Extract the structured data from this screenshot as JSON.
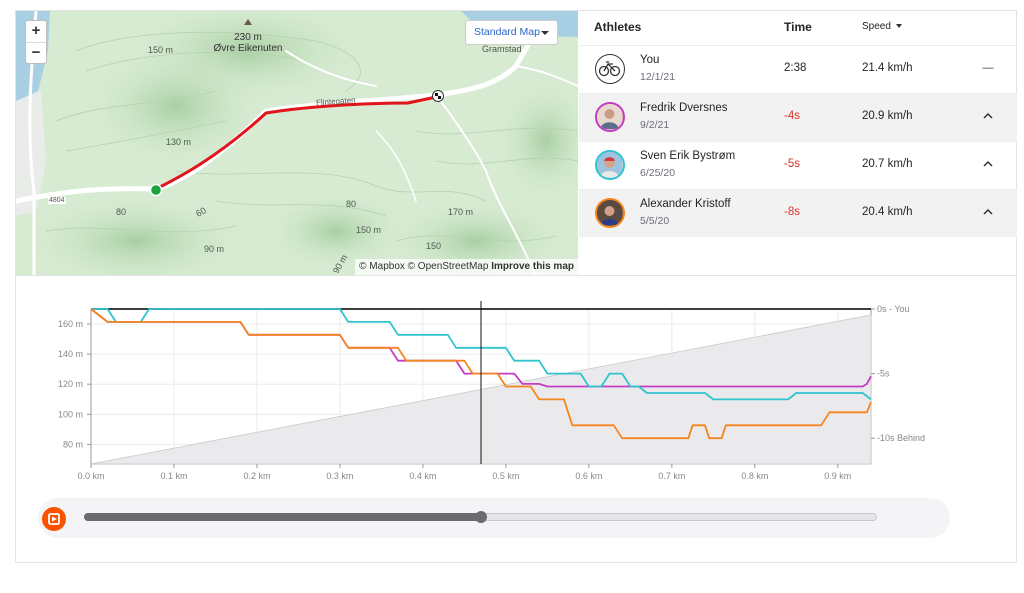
{
  "map": {
    "zoom_in": "+",
    "zoom_out": "−",
    "style_label": "Standard Map",
    "attribution_left": "© Mapbox © OpenStreetMap",
    "attribution_link": "Improve this map",
    "labels": {
      "peak_height": "230 m",
      "peak_name": "Øvre Eikenuten",
      "place": "Gramstad",
      "road": "Flintegaten",
      "road_number": "4804",
      "contours": [
        "150 m",
        "130 m",
        "60",
        "80",
        "90 m",
        "80",
        "150 m",
        "150",
        "170 m",
        "90 m"
      ]
    }
  },
  "leaderboard": {
    "headers": {
      "athletes": "Athletes",
      "time": "Time",
      "speed": "Speed"
    },
    "rows": [
      {
        "name": "You",
        "date": "12/1/21",
        "time": "2:38",
        "speed": "21.4 km/h",
        "toggle": "—",
        "avatar": "bike-icon",
        "ring": "#333333"
      },
      {
        "name": "Fredrik Dversnes",
        "date": "9/2/21",
        "time": "-4s",
        "speed": "20.9 km/h",
        "toggle": "⌃",
        "avatar": "athlete-photo",
        "ring": "#c43bc4"
      },
      {
        "name": "Sven Erik Bystrøm",
        "date": "6/25/20",
        "time": "-5s",
        "speed": "20.7 km/h",
        "toggle": "⌃",
        "avatar": "athlete-photo",
        "ring": "#2ec4d0"
      },
      {
        "name": "Alexander Kristoff",
        "date": "5/5/20",
        "time": "-8s",
        "speed": "20.4 km/h",
        "toggle": "⌃",
        "avatar": "athlete-photo",
        "ring": "#f5851f"
      }
    ]
  },
  "chart_data": {
    "type": "line",
    "x_ticks": [
      "0.0 km",
      "0.1 km",
      "0.2 km",
      "0.3 km",
      "0.4 km",
      "0.5 km",
      "0.6 km",
      "0.7 km",
      "0.8 km",
      "0.9 km"
    ],
    "y_ticks": [
      "160 m",
      "140 m",
      "120 m",
      "100 m",
      "80 m"
    ],
    "y2_ticks": [
      "0s - You",
      "-5s",
      "-10s Behind"
    ],
    "xlim": [
      0,
      0.94
    ],
    "ylim": [
      67,
      170
    ],
    "y2lim": [
      0,
      12
    ],
    "cursor_x": 0.47,
    "elevation": {
      "x": [
        0,
        0.94
      ],
      "y": [
        67,
        166
      ]
    },
    "series": [
      {
        "color": "#222222",
        "x": [
          0,
          0.94
        ],
        "y": [
          0,
          0
        ]
      },
      {
        "color": "#c43bc4",
        "x": [
          0,
          0.01,
          0.02,
          0.06,
          0.18,
          0.19,
          0.3,
          0.31,
          0.36,
          0.37,
          0.44,
          0.45,
          0.51,
          0.52,
          0.54,
          0.55,
          0.93,
          0.935,
          0.94
        ],
        "y": [
          0,
          0.5,
          1,
          1,
          1,
          2,
          2,
          3,
          3,
          4,
          4,
          5,
          5,
          5.8,
          5.8,
          6,
          6,
          5.8,
          5.2
        ]
      },
      {
        "color": "#2ec4d0",
        "x": [
          0,
          0.02,
          0.03,
          0.06,
          0.07,
          0.3,
          0.31,
          0.36,
          0.37,
          0.43,
          0.44,
          0.5,
          0.51,
          0.54,
          0.55,
          0.59,
          0.6,
          0.615,
          0.625,
          0.64,
          0.65,
          0.66,
          0.67,
          0.74,
          0.75,
          0.84,
          0.85,
          0.93,
          0.94
        ],
        "y": [
          0,
          0,
          1,
          1,
          0,
          0,
          1,
          1,
          2,
          2,
          3,
          3,
          4,
          4,
          5,
          5,
          6,
          6,
          5,
          5,
          6,
          6,
          6.5,
          6.5,
          7,
          7,
          6.5,
          6.5,
          7
        ]
      },
      {
        "color": "#f5851f",
        "x": [
          0,
          0.01,
          0.02,
          0.18,
          0.19,
          0.3,
          0.31,
          0.37,
          0.38,
          0.45,
          0.46,
          0.49,
          0.5,
          0.53,
          0.54,
          0.57,
          0.58,
          0.63,
          0.64,
          0.72,
          0.725,
          0.74,
          0.745,
          0.76,
          0.765,
          0.88,
          0.89,
          0.935,
          0.94
        ],
        "y": [
          0,
          0.5,
          1,
          1,
          2,
          2,
          3,
          3,
          4,
          4,
          5,
          5,
          6,
          6,
          7,
          7,
          9,
          9,
          10,
          10,
          9,
          9,
          10,
          10,
          9,
          9,
          8,
          8,
          7.2
        ]
      }
    ]
  },
  "playback": {
    "progress": 0.5
  }
}
